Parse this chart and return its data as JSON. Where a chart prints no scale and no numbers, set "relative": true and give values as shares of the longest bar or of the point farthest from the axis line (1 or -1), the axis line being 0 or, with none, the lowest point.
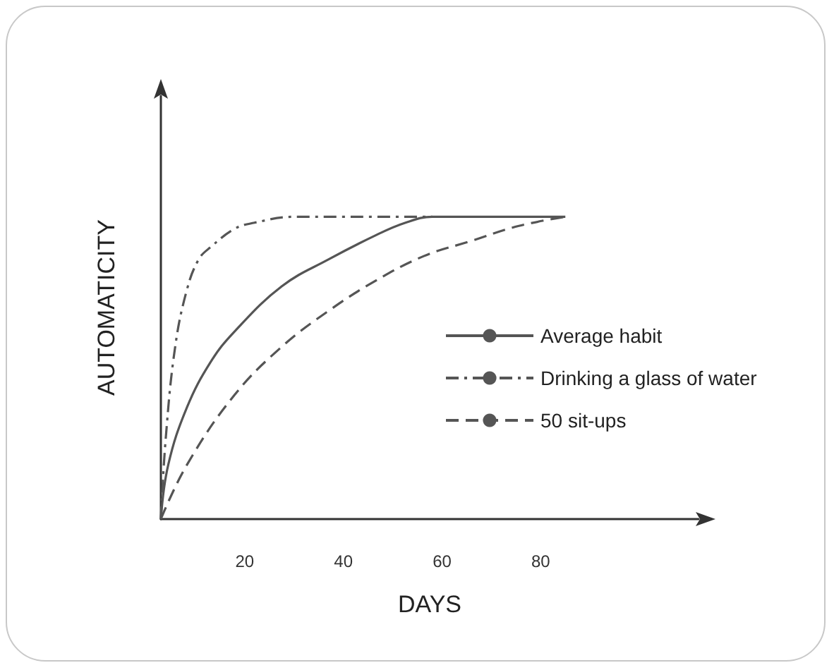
{
  "chart_data": {
    "type": "line",
    "xlabel": "DAYS",
    "ylabel": "AUTOMATICITY",
    "relative": true,
    "xlim": [
      3,
      112
    ],
    "xticks": [
      20,
      40,
      60,
      80
    ],
    "legend": "right",
    "grid": false,
    "marker": "none",
    "series": [
      {
        "name": "Average habit",
        "color": "#555555",
        "line_style": "solid",
        "x": [
          3,
          4.5,
          8.3,
          13.1,
          17.9,
          27.5,
          37.1,
          46.7,
          52.5,
          58,
          85
        ],
        "values": [
          0,
          0.18,
          0.37,
          0.52,
          0.62,
          0.77,
          0.86,
          0.94,
          0.98,
          1,
          1
        ]
      },
      {
        "name": "Drinking a glass of water",
        "color": "#555555",
        "line_style": "dashdot",
        "x": [
          3,
          4,
          5.9,
          8.3,
          10.7,
          13.1,
          17.9,
          21.8,
          30,
          58
        ],
        "values": [
          0,
          0.27,
          0.57,
          0.76,
          0.86,
          0.9,
          0.96,
          0.98,
          1,
          1
        ]
      },
      {
        "name": "50 sit-ups",
        "color": "#555555",
        "line_style": "dashed",
        "x": [
          3,
          8.3,
          17.9,
          27.5,
          37.1,
          46.7,
          56.3,
          65.9,
          75.6,
          85
        ],
        "values": [
          0,
          0.18,
          0.41,
          0.57,
          0.69,
          0.79,
          0.87,
          0.92,
          0.97,
          1
        ]
      }
    ]
  }
}
